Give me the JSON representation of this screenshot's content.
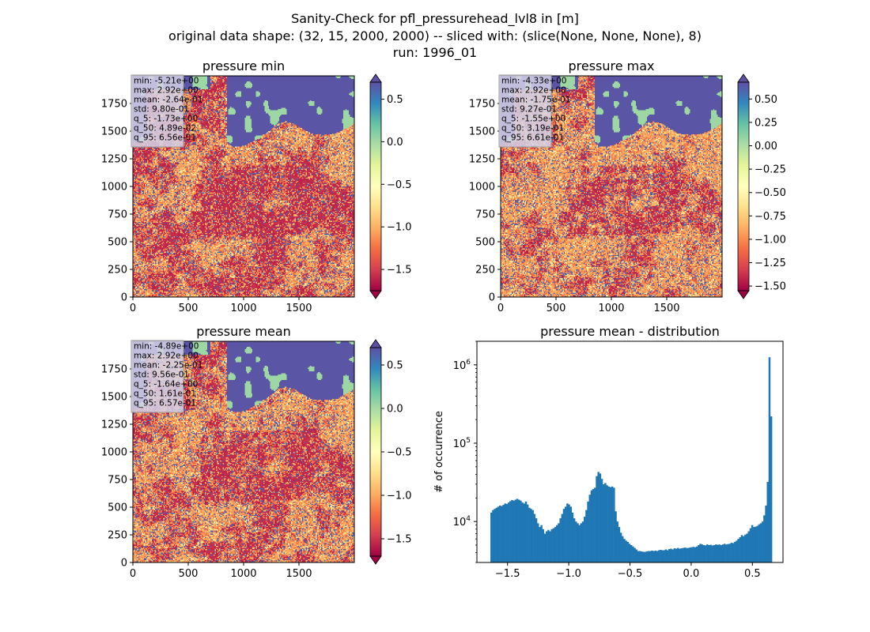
{
  "figure": {
    "title_lines": [
      "Sanity-Check for pfl_pressurehead_lvl8 in [m]",
      "original data shape: (32, 15, 2000, 2000) -- sliced with: (slice(None, None, None), 8)",
      "run: 1996_01"
    ]
  },
  "colors": {
    "hist_bar": "#1f77b4",
    "colormap": "Spectral",
    "ocean": "#5e4fa2",
    "stats_box": "#d5d2e8"
  },
  "chart_data": [
    {
      "type": "heatmap",
      "title": "pressure min",
      "colormap": "Spectral",
      "xlim": [
        0,
        2000
      ],
      "ylim": [
        0,
        2000
      ],
      "xticks": [
        "0",
        "500",
        "1000",
        "1500"
      ],
      "yticks": [
        "0",
        "250",
        "500",
        "750",
        "1000",
        "1250",
        "1500",
        "1750"
      ],
      "clim": [
        -1.75,
        0.7
      ],
      "colorbar_ticks": [
        "0.5",
        "0.0",
        "−0.5",
        "−1.0",
        "−1.5"
      ],
      "colorbar_tick_values": [
        0.5,
        0.0,
        -0.5,
        -1.0,
        -1.5
      ],
      "stats": [
        "min: -5.21e+00",
        "max: 2.92e+00",
        "mean: -2.64e-01",
        "std: 9.80e-01",
        "q_5: -1.73e+00",
        "q_50: 4.89e-02",
        "q_95: 6.56e-01"
      ]
    },
    {
      "type": "heatmap",
      "title": "pressure max",
      "colormap": "Spectral",
      "xlim": [
        0,
        2000
      ],
      "ylim": [
        0,
        2000
      ],
      "xticks": [
        "0",
        "500",
        "1000",
        "1500"
      ],
      "yticks": [
        "0",
        "250",
        "500",
        "750",
        "1000",
        "1250",
        "1500",
        "1750"
      ],
      "clim": [
        -1.55,
        0.68
      ],
      "colorbar_ticks": [
        "0.50",
        "0.25",
        "0.00",
        "−0.25",
        "−0.50",
        "−0.75",
        "−1.00",
        "−1.25",
        "−1.50"
      ],
      "colorbar_tick_values": [
        0.5,
        0.25,
        0.0,
        -0.25,
        -0.5,
        -0.75,
        -1.0,
        -1.25,
        -1.5
      ],
      "stats": [
        "min: -4.33e+00",
        "max: 2.92e+00",
        "mean: -1.75e-01",
        "std: 9.27e-01",
        "q_5: -1.55e+00",
        "q_50: 3.19e-01",
        "q_95: 6.61e-01"
      ]
    },
    {
      "type": "heatmap",
      "title": "pressure mean",
      "colormap": "Spectral",
      "xlim": [
        0,
        2000
      ],
      "ylim": [
        0,
        2000
      ],
      "xticks": [
        "0",
        "500",
        "1000",
        "1500"
      ],
      "yticks": [
        "0",
        "250",
        "500",
        "750",
        "1000",
        "1250",
        "1500",
        "1750"
      ],
      "clim": [
        -1.7,
        0.7
      ],
      "colorbar_ticks": [
        "0.5",
        "0.0",
        "−0.5",
        "−1.0",
        "−1.5"
      ],
      "colorbar_tick_values": [
        0.5,
        0.0,
        -0.5,
        -1.0,
        -1.5
      ],
      "stats": [
        "min: -4.89e+00",
        "max: 2.92e+00",
        "mean: -2.25e-01",
        "std: 9.56e-01",
        "q_5: -1.64e+00",
        "q_50: 1.61e-01",
        "q_95: 6.57e-01"
      ]
    },
    {
      "type": "bar",
      "title": "pressure mean - distribution",
      "ylabel": "# of occurrence",
      "yscale": "log",
      "xlim": [
        -1.75,
        0.75
      ],
      "ylim": [
        3000,
        2000000
      ],
      "xticks": [
        "−1.5",
        "−1.0",
        "−0.5",
        "0.0",
        "0.5"
      ],
      "xtick_values": [
        -1.5,
        -1.0,
        -0.5,
        0.0,
        0.5
      ],
      "yticks": [
        "10",
        "10",
        "10"
      ],
      "ytick_exponents": [
        "4",
        "5",
        "6"
      ],
      "ytick_values": [
        10000,
        100000,
        1000000
      ],
      "histogram": {
        "edges": [
          -1.64,
          0.66
        ],
        "counts": [
          13000,
          14000,
          14500,
          15000,
          15500,
          16000,
          15800,
          16300,
          17000,
          16800,
          17500,
          18200,
          18800,
          18500,
          19000,
          19500,
          19000,
          18500,
          17500,
          17000,
          18000,
          16500,
          15000,
          14500,
          14000,
          12500,
          11000,
          9500,
          8500,
          9000,
          8000,
          7000,
          7500,
          7800,
          7500,
          8000,
          8200,
          8500,
          9000,
          9500,
          11000,
          12500,
          14500,
          15500,
          17000,
          16500,
          15500,
          13000,
          11000,
          10000,
          9500,
          9000,
          9500,
          10000,
          11500,
          14000,
          18000,
          22000,
          25000,
          26000,
          27000,
          38000,
          43000,
          41000,
          35000,
          30000,
          31000,
          29000,
          28000,
          27500,
          28000,
          27000,
          13500,
          10000,
          8500,
          7200,
          6500,
          6000,
          5700,
          5500,
          5200,
          5000,
          4800,
          4600,
          4400,
          4200,
          4200,
          4150,
          4100,
          4100,
          4150,
          4200,
          4200,
          4250,
          4200,
          4250,
          4200,
          4300,
          4350,
          4300,
          4300,
          4400,
          4300,
          4450,
          4500,
          4400,
          4550,
          4500,
          4600,
          4500,
          4550,
          4600,
          4650,
          4600,
          4600,
          4650,
          4700,
          4750,
          4700,
          4800,
          5000,
          5200,
          5100,
          5000,
          4950,
          5100,
          5000,
          5050,
          4950,
          5000,
          5100,
          5050,
          5100,
          5000,
          5100,
          5200,
          5100,
          5150,
          5200,
          5350,
          5300,
          5500,
          5700,
          6000,
          6300,
          6700,
          6500,
          6800,
          7000,
          7500,
          8200,
          9000,
          8500,
          8600,
          8800,
          9200,
          9500,
          10000,
          12000,
          16000,
          32000,
          1250000,
          220000
        ]
      }
    }
  ]
}
